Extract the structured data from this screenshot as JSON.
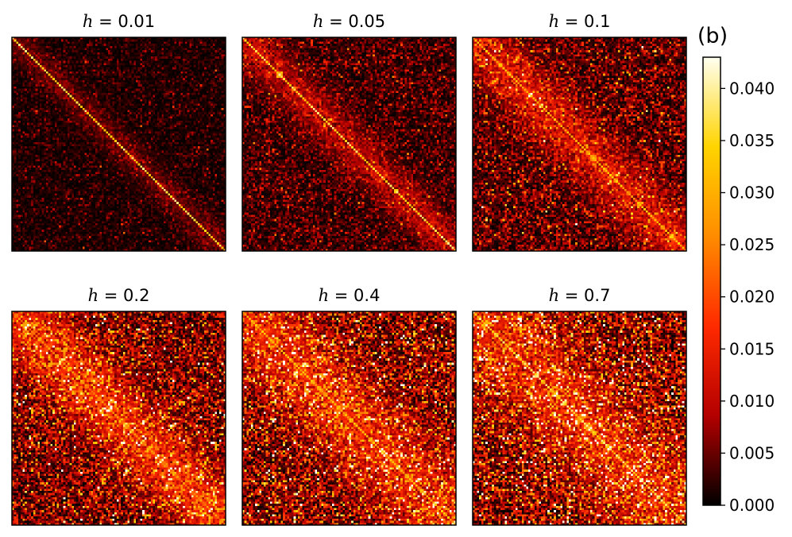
{
  "figure_label": "(b)",
  "colors": {
    "colormap": "hot",
    "stops": [
      "#000000",
      "#b40000",
      "#ff2a00",
      "#ff8c00",
      "#ffd400",
      "#fffff0"
    ],
    "axes_frame": "#000000",
    "background": "#ffffff"
  },
  "chart_data": [
    {
      "type": "heatmap",
      "title": "h = 0.01",
      "title_var": "h",
      "title_value": "0.01",
      "colormap": "hot",
      "matrix_size": 100,
      "diagonal_peak": 0.04,
      "background_level": 0.002,
      "xticks": [],
      "yticks": []
    },
    {
      "type": "heatmap",
      "title": "h = 0.05",
      "title_var": "h",
      "title_value": "0.05",
      "colormap": "hot",
      "matrix_size": 100,
      "diagonal_peak": 0.04,
      "background_level": 0.004,
      "xticks": [],
      "yticks": []
    },
    {
      "type": "heatmap",
      "title": "h = 0.1",
      "title_var": "h",
      "title_value": "0.1",
      "colormap": "hot",
      "matrix_size": 100,
      "diagonal_peak": 0.035,
      "background_level": 0.006,
      "xticks": [],
      "yticks": []
    },
    {
      "type": "heatmap",
      "title": "h = 0.2",
      "title_var": "h",
      "title_value": "0.2",
      "colormap": "hot",
      "matrix_size": 100,
      "diagonal_peak": 0.03,
      "background_level": 0.009,
      "xticks": [],
      "yticks": []
    },
    {
      "type": "heatmap",
      "title": "h = 0.4",
      "title_var": "h",
      "title_value": "0.4",
      "colormap": "hot",
      "matrix_size": 100,
      "diagonal_peak": 0.035,
      "background_level": 0.01,
      "xticks": [],
      "yticks": []
    },
    {
      "type": "heatmap",
      "title": "h = 0.7",
      "title_var": "h",
      "title_value": "0.7",
      "colormap": "hot",
      "matrix_size": 100,
      "diagonal_peak": 0.04,
      "background_level": 0.011,
      "xticks": [],
      "yticks": []
    }
  ],
  "colorbar": {
    "range": [
      0.0,
      0.043
    ],
    "ticks": [
      0.0,
      0.005,
      0.01,
      0.015,
      0.02,
      0.025,
      0.03,
      0.035,
      0.04
    ],
    "tick_labels": [
      "0.000",
      "0.005",
      "0.010",
      "0.015",
      "0.020",
      "0.025",
      "0.030",
      "0.035",
      "0.040"
    ]
  }
}
